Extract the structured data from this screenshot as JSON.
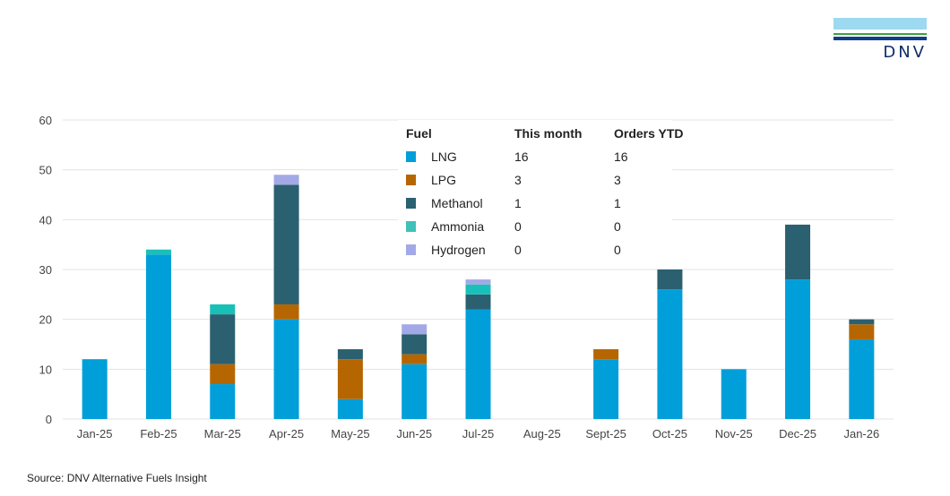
{
  "logo": {
    "text": "DNV"
  },
  "source": "Source: DNV Alternative Fuels Insight",
  "legend_table": {
    "headers": [
      "Fuel",
      "This month",
      "Orders YTD"
    ],
    "rows": [
      {
        "fuel": "LNG",
        "this_month": "16",
        "ytd": "16",
        "color": "#009fda"
      },
      {
        "fuel": "LPG",
        "this_month": "3",
        "ytd": "3",
        "color": "#b56600"
      },
      {
        "fuel": "Methanol",
        "this_month": "1",
        "ytd": "1",
        "color": "#2b6070"
      },
      {
        "fuel": "Ammonia",
        "this_month": "0",
        "ytd": "0",
        "color": "#3fc1b8"
      },
      {
        "fuel": "Hydrogen",
        "this_month": "0",
        "ytd": "0",
        "color": "#a3a9e6"
      }
    ]
  },
  "chart_data": {
    "type": "bar",
    "stacked": true,
    "title": "",
    "xlabel": "",
    "ylabel": "",
    "ylim": [
      0,
      60
    ],
    "yticks": [
      0,
      10,
      20,
      30,
      40,
      50,
      60
    ],
    "grid": true,
    "legend_position": "top-center",
    "categories": [
      "Jan-25",
      "Feb-25",
      "Mar-25",
      "Apr-25",
      "May-25",
      "Jun-25",
      "Jul-25",
      "Aug-25",
      "Sept-25",
      "Oct-25",
      "Nov-25",
      "Dec-25",
      "Jan-26"
    ],
    "series": [
      {
        "name": "LNG",
        "color": "#009fda",
        "values": [
          12,
          33,
          7,
          20,
          4,
          11,
          22,
          0,
          12,
          26,
          10,
          28,
          16
        ]
      },
      {
        "name": "LPG",
        "color": "#b56600",
        "values": [
          0,
          0,
          4,
          3,
          8,
          2,
          0,
          0,
          2,
          0,
          0,
          0,
          3
        ]
      },
      {
        "name": "Methanol",
        "color": "#2b6070",
        "values": [
          0,
          0,
          10,
          24,
          2,
          4,
          3,
          0,
          0,
          4,
          0,
          11,
          1
        ]
      },
      {
        "name": "Ammonia",
        "color": "#18c0b8",
        "values": [
          0,
          1,
          2,
          0,
          0,
          0,
          2,
          0,
          0,
          0,
          0,
          0,
          0
        ]
      },
      {
        "name": "Hydrogen",
        "color": "#a3a9e6",
        "values": [
          0,
          0,
          0,
          2,
          0,
          2,
          1,
          0,
          0,
          0,
          0,
          0,
          0
        ]
      }
    ]
  }
}
